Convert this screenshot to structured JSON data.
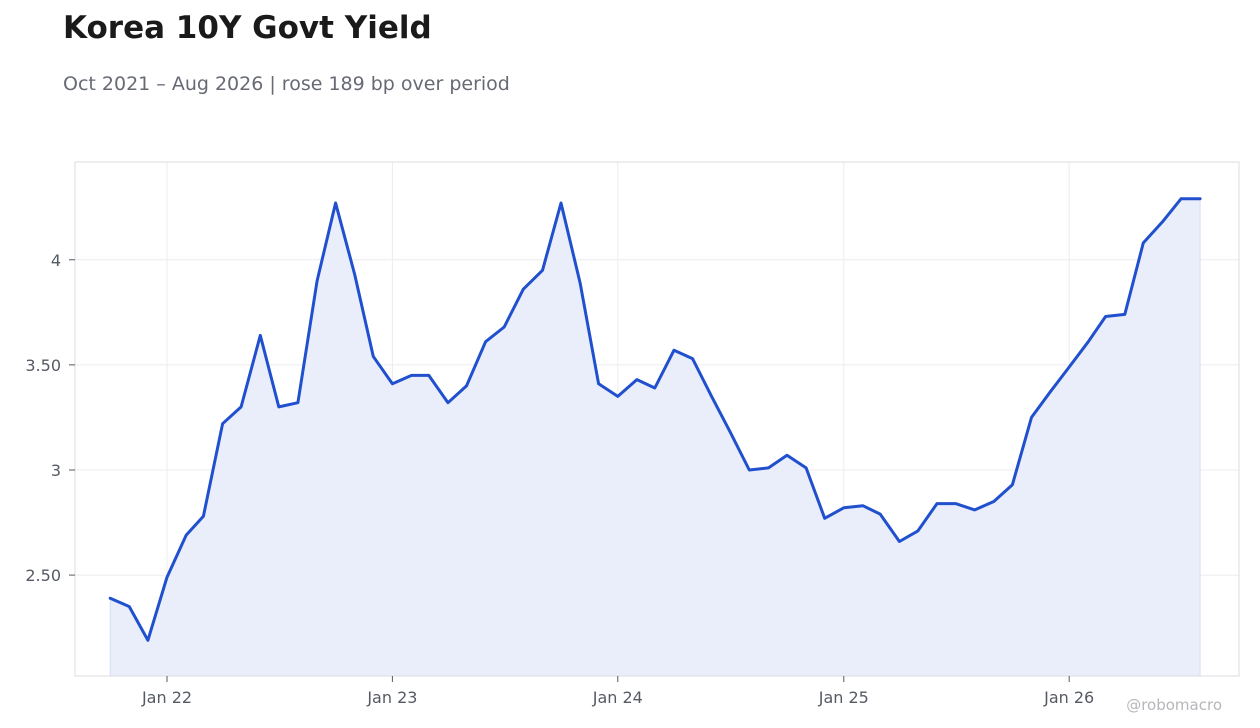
{
  "header": {
    "title": "Korea 10Y Govt Yield",
    "subtitle": "Oct 2021 – Aug 2026 | rose 189 bp over period"
  },
  "watermark": "@robomacro",
  "colors": {
    "line": "#2150cf",
    "area": "#e9eefa",
    "grid": "#ececf0",
    "axis_text": "#555a63"
  },
  "chart_data": {
    "type": "area",
    "title": "Korea 10Y Govt Yield",
    "subtitle": "Oct 2021 – Aug 2026 | rose 189 bp over period",
    "xlabel": "",
    "ylabel": "",
    "x_ticks": [
      {
        "label": "Jan 22",
        "date": "2022-01-01"
      },
      {
        "label": "Jan 23",
        "date": "2023-01-01"
      },
      {
        "label": "Jan 24",
        "date": "2024-01-01"
      },
      {
        "label": "Jan 25",
        "date": "2025-01-01"
      },
      {
        "label": "Jan 26",
        "date": "2026-01-01"
      }
    ],
    "y_ticks": [
      {
        "label": "2.50",
        "value": 2.5
      },
      {
        "label": "3",
        "value": 3.0
      },
      {
        "label": "3.50",
        "value": 3.5
      },
      {
        "label": "4",
        "value": 4.0
      }
    ],
    "xlim": [
      "2021-08-05",
      "2026-10-03"
    ],
    "ylim": [
      2.02,
      4.465
    ],
    "grid": true,
    "legend": "none",
    "series": [
      {
        "x": [
          "2021-10-01",
          "2021-11-01",
          "2021-12-01",
          "2022-01-01",
          "2022-02-01",
          "2022-03-01",
          "2022-04-01",
          "2022-05-01",
          "2022-06-01",
          "2022-07-01",
          "2022-08-01",
          "2022-09-01",
          "2022-10-01",
          "2022-11-01",
          "2022-12-01",
          "2023-01-01",
          "2023-02-01",
          "2023-03-01",
          "2023-04-01",
          "2023-05-01",
          "2023-06-01",
          "2023-07-01",
          "2023-08-01",
          "2023-09-01",
          "2023-10-01",
          "2023-11-01",
          "2023-12-01",
          "2024-01-01",
          "2024-02-01",
          "2024-03-01",
          "2024-04-01",
          "2024-05-01",
          "2024-06-01",
          "2024-07-01",
          "2024-08-01",
          "2024-09-01",
          "2024-10-01",
          "2024-11-01",
          "2024-12-01",
          "2025-01-01",
          "2025-02-01",
          "2025-03-01",
          "2025-04-01",
          "2025-05-01",
          "2025-06-01",
          "2025-07-01",
          "2025-08-01",
          "2025-09-01",
          "2025-10-01",
          "2025-11-01",
          "2025-12-01",
          "2026-01-01",
          "2026-02-01",
          "2026-03-01",
          "2026-04-01",
          "2026-05-01",
          "2026-06-01",
          "2026-07-01",
          "2026-08-01"
        ],
        "values": [
          2.39,
          2.35,
          2.19,
          2.49,
          2.69,
          2.78,
          3.22,
          3.3,
          3.64,
          3.3,
          3.32,
          3.9,
          4.27,
          3.93,
          3.54,
          3.41,
          3.45,
          3.45,
          3.32,
          3.4,
          3.61,
          3.68,
          3.86,
          3.95,
          4.27,
          3.89,
          3.41,
          3.35,
          3.43,
          3.39,
          3.57,
          3.53,
          3.35,
          3.18,
          3.0,
          3.01,
          3.07,
          3.01,
          2.77,
          2.82,
          2.83,
          2.79,
          2.66,
          2.71,
          2.84,
          2.84,
          2.81,
          2.85,
          2.93,
          3.25,
          3.37,
          3.49,
          3.61,
          3.73,
          3.74,
          4.08,
          4.18,
          4.29,
          4.29
        ]
      }
    ]
  }
}
